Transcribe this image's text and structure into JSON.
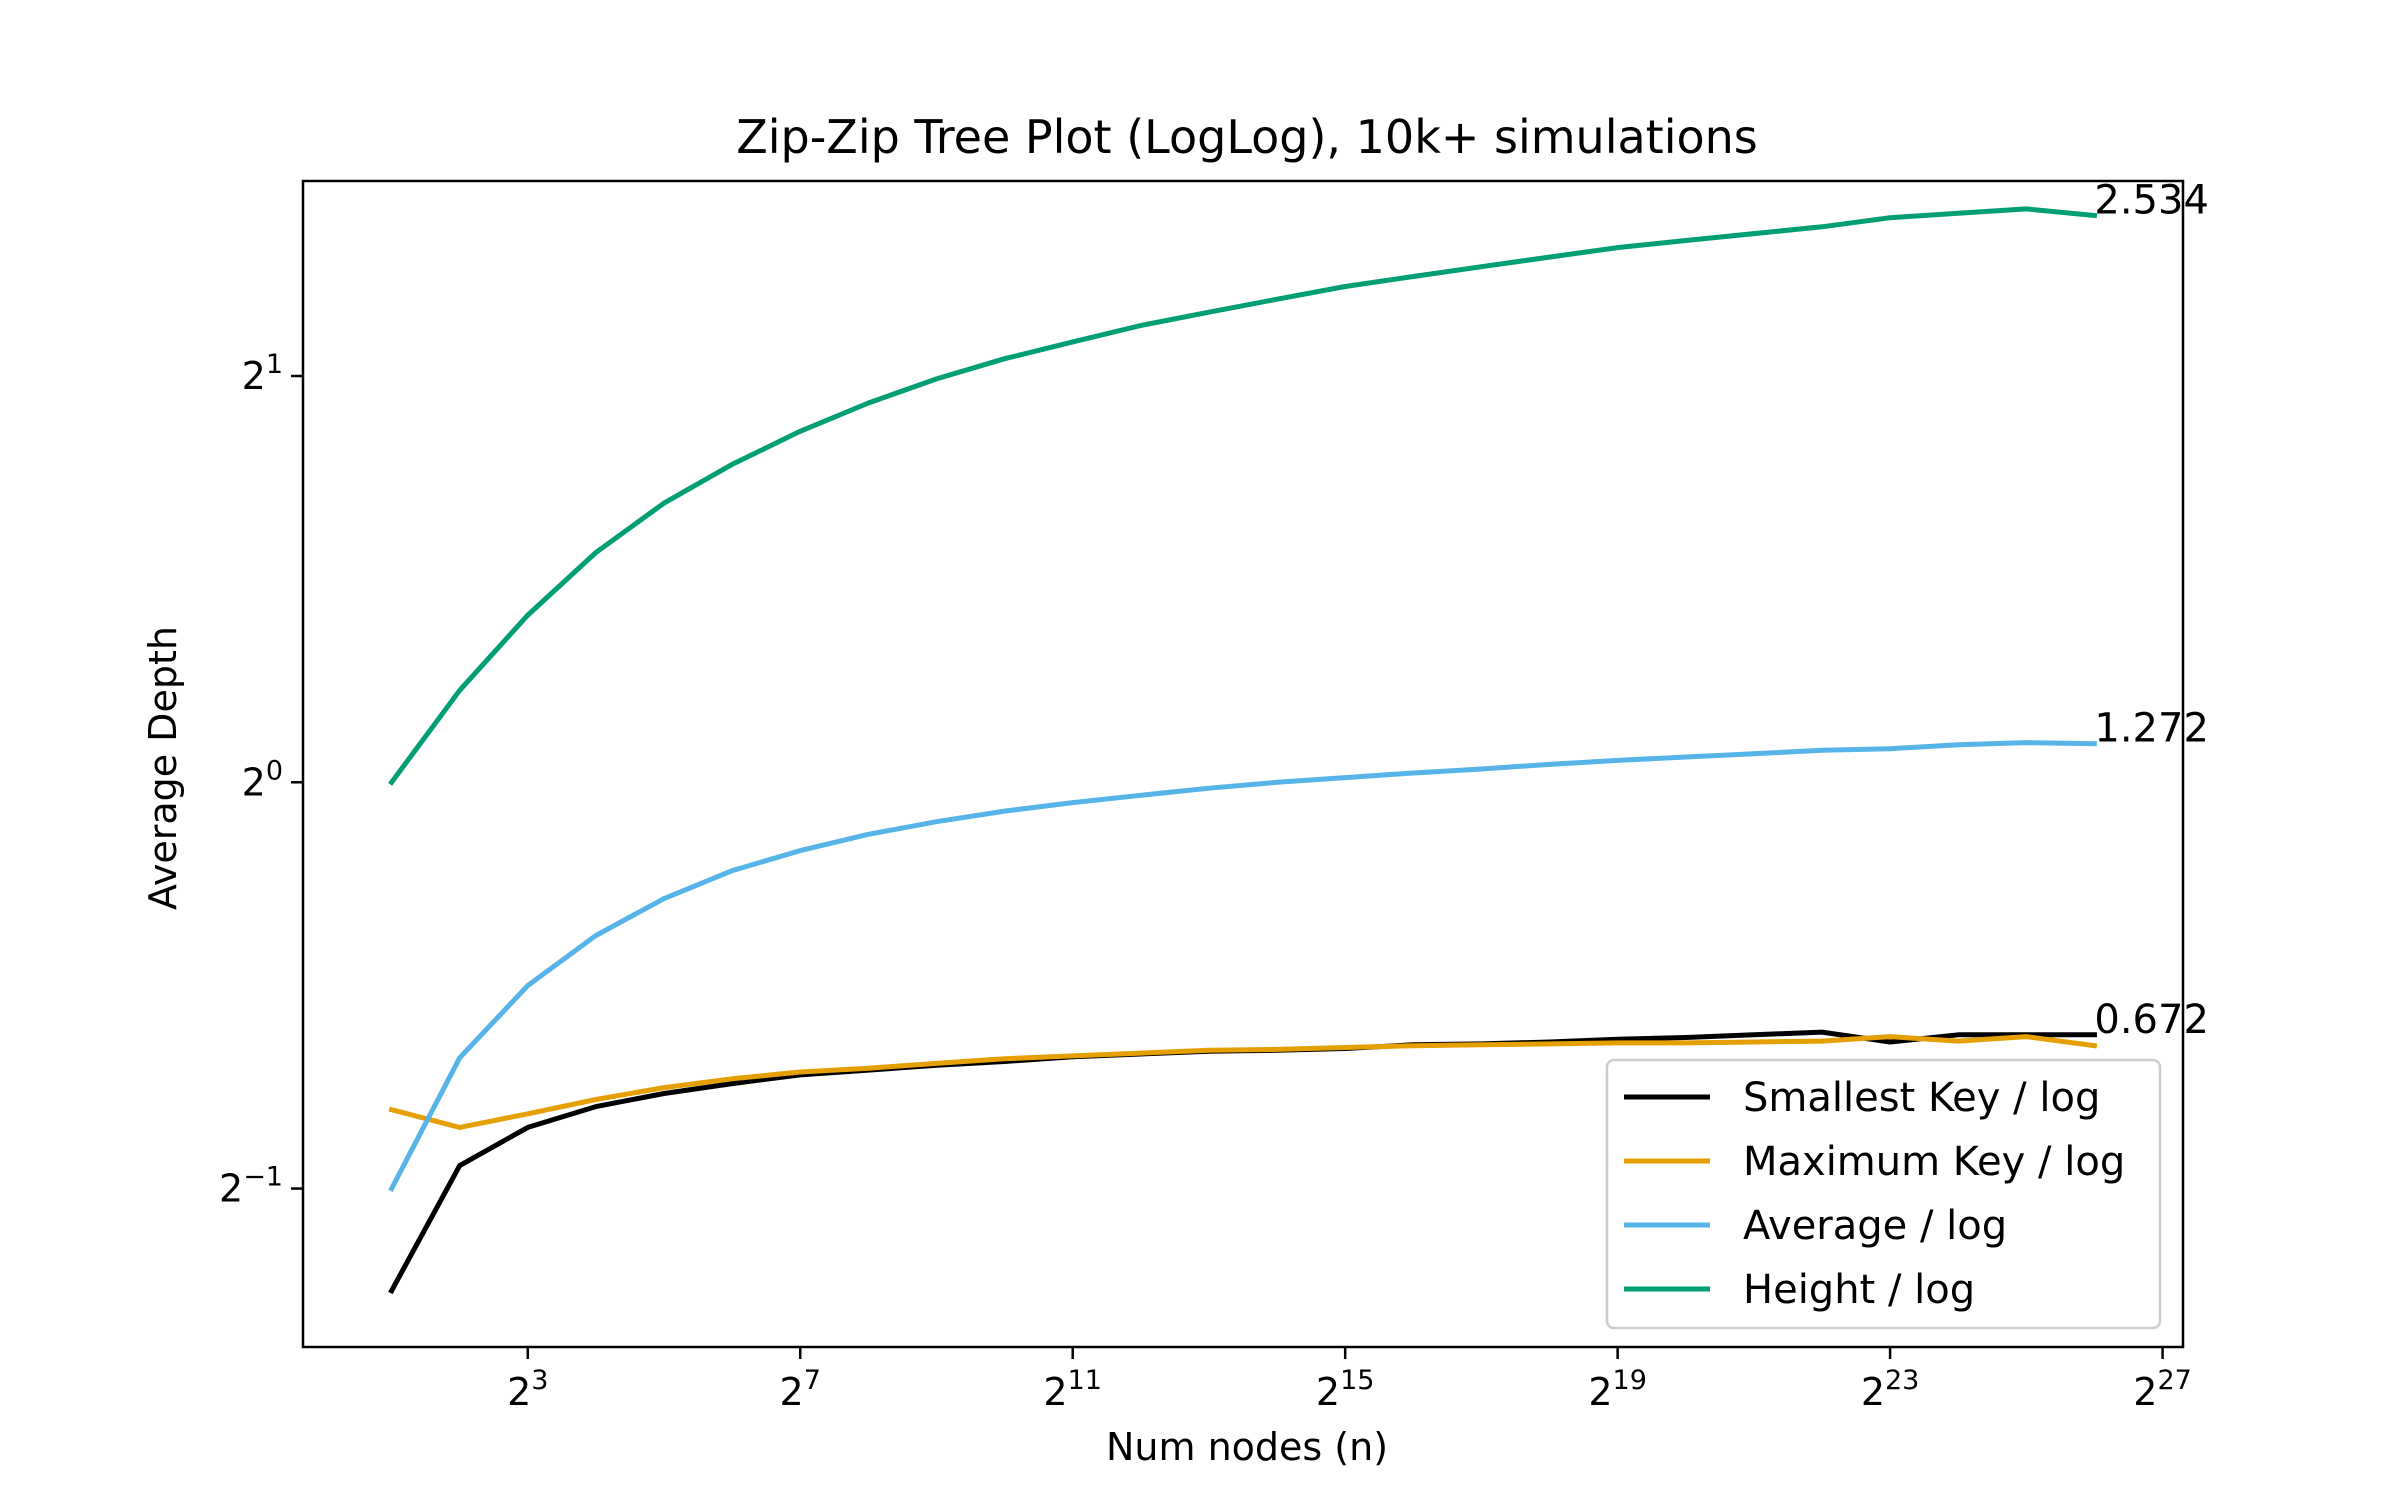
{
  "chart_data": {
    "type": "line",
    "title": "Zip-Zip Tree Plot (LogLog), 10k+ simulations",
    "xlabel": "Num nodes (n)",
    "ylabel": "Average Depth",
    "x_scale": "log2",
    "y_scale": "log2",
    "x_tick_base": "2",
    "x_tick_exponents": [
      "3",
      "7",
      "11",
      "15",
      "19",
      "23",
      "27"
    ],
    "y_tick_base": "2",
    "y_tick_exponents": [
      "−1",
      "0",
      "1"
    ],
    "xlim_log2": [
      -0.3,
      27.3
    ],
    "ylim_log2": [
      -1.39,
      1.48
    ],
    "x_log2": [
      1,
      2,
      3,
      4,
      5,
      6,
      7,
      8,
      9,
      10,
      11,
      12,
      13,
      14,
      15,
      16,
      17,
      18,
      19,
      20,
      21,
      22,
      23,
      24,
      25,
      26
    ],
    "series": [
      {
        "name": "Smallest Key / log",
        "color": "#000000",
        "values": [
          0.42,
          0.52,
          0.555,
          0.575,
          0.588,
          0.598,
          0.607,
          0.612,
          0.617,
          0.621,
          0.626,
          0.629,
          0.632,
          0.633,
          0.635,
          0.639,
          0.64,
          0.642,
          0.645,
          0.647,
          0.65,
          0.653,
          0.642,
          0.65,
          0.65,
          0.65
        ]
      },
      {
        "name": "Maximum Key / log",
        "color": "#e69f00",
        "values": [
          0.572,
          0.555,
          0.568,
          0.582,
          0.594,
          0.603,
          0.61,
          0.614,
          0.619,
          0.624,
          0.627,
          0.63,
          0.633,
          0.634,
          0.636,
          0.638,
          0.639,
          0.64,
          0.641,
          0.641,
          0.642,
          0.643,
          0.648,
          0.643,
          0.648,
          0.638
        ]
      },
      {
        "name": "Average / log",
        "color": "#56b4e9",
        "values": [
          0.5,
          0.625,
          0.707,
          0.77,
          0.82,
          0.86,
          0.89,
          0.915,
          0.935,
          0.952,
          0.966,
          0.978,
          0.99,
          1.0,
          1.008,
          1.016,
          1.023,
          1.031,
          1.038,
          1.044,
          1.05,
          1.056,
          1.059,
          1.066,
          1.07,
          1.068
        ]
      },
      {
        "name": "Height / log",
        "color": "#009e73",
        "values": [
          1.0,
          1.17,
          1.33,
          1.48,
          1.61,
          1.72,
          1.82,
          1.91,
          1.99,
          2.06,
          2.12,
          2.18,
          2.23,
          2.28,
          2.33,
          2.37,
          2.41,
          2.45,
          2.49,
          2.52,
          2.55,
          2.58,
          2.62,
          2.64,
          2.66,
          2.63
        ]
      }
    ],
    "end_labels": [
      {
        "text": "2.534",
        "series": 3
      },
      {
        "text": "1.272",
        "series": 2
      },
      {
        "text": "0.672",
        "series": 0
      }
    ],
    "legend": {
      "position": "lower-right",
      "entries": [
        "Smallest Key / log",
        "Maximum Key / log",
        "Average / log",
        "Height / log"
      ]
    },
    "grid": false
  }
}
